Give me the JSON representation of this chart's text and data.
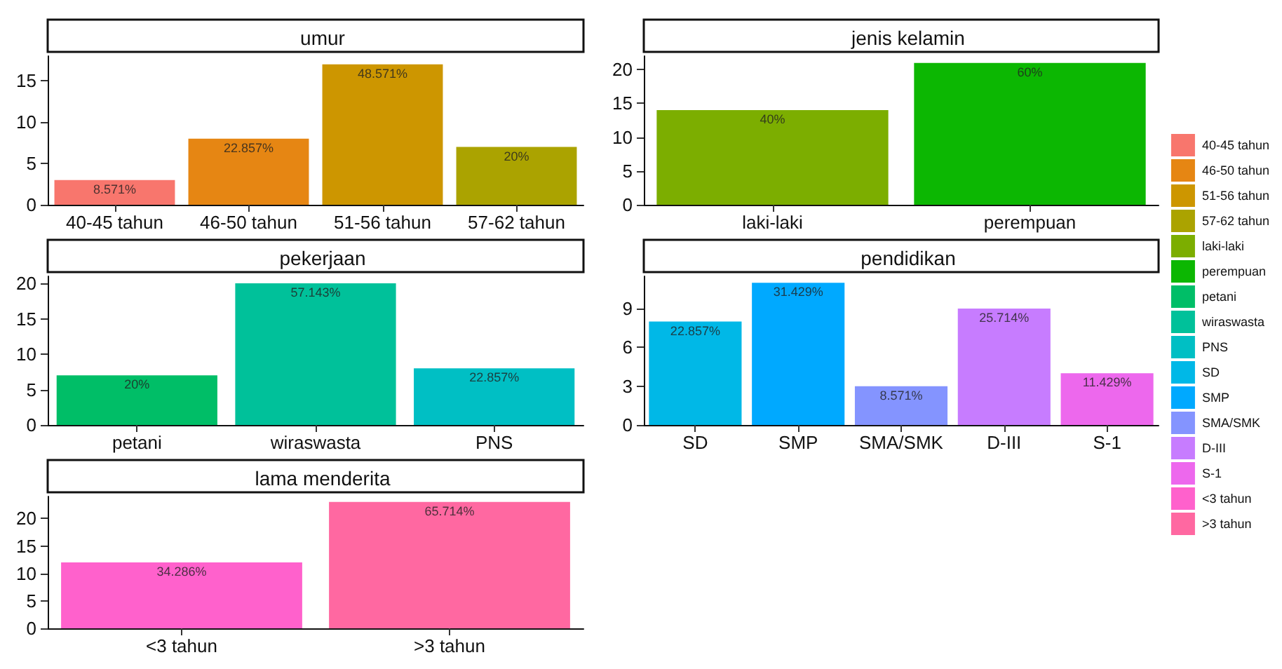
{
  "chart_data": [
    {
      "type": "bar",
      "title": "umur",
      "categories": [
        "40-45 tahun",
        "46-50 tahun",
        "51-56 tahun",
        "57-62 tahun"
      ],
      "stacked": true,
      "series": [
        {
          "name": "40-45 tahun",
          "color": "#F8766D",
          "values": [
            3,
            null,
            null,
            null
          ]
        },
        {
          "name": "46-50 tahun",
          "color": "#E68613",
          "values": [
            null,
            8,
            null,
            null
          ]
        },
        {
          "name": "51-56 tahun",
          "color": "#CD9600",
          "values": [
            null,
            null,
            17,
            null
          ]
        },
        {
          "name": "57-62 tahun",
          "color": "#ABA300",
          "values": [
            null,
            null,
            null,
            7
          ]
        }
      ],
      "annotations": [
        {
          "text": "8.571%",
          "x": "40-45 tahun",
          "y": 3
        },
        {
          "text": "22.857%",
          "x": "46-50 tahun",
          "y": 8
        },
        {
          "text": "48.571%",
          "x": "51-56 tahun",
          "y": 17
        },
        {
          "text": "20%",
          "x": "57-62 tahun",
          "y": 7
        }
      ],
      "ylim": [
        0,
        18
      ],
      "yticks": [
        0,
        5,
        10,
        15
      ],
      "legend": "right"
    },
    {
      "type": "bar",
      "title": "jenis kelamin",
      "categories": [
        "laki-laki",
        "perempuan"
      ],
      "stacked": true,
      "series": [
        {
          "name": "laki-laki",
          "color": "#7CAE00",
          "values": [
            14,
            null
          ]
        },
        {
          "name": "perempuan",
          "color": "#0CB702",
          "values": [
            null,
            21
          ]
        }
      ],
      "annotations": [
        {
          "text": "40%",
          "x": "laki-laki",
          "y": 14
        },
        {
          "text": "60%",
          "x": "perempuan",
          "y": 21
        }
      ],
      "ylim": [
        0,
        22
      ],
      "yticks": [
        0,
        5,
        10,
        15,
        20
      ],
      "legend": "right"
    },
    {
      "type": "bar",
      "title": "pekerjaan",
      "categories": [
        "petani",
        "wiraswasta",
        "PNS"
      ],
      "stacked": true,
      "series": [
        {
          "name": "petani",
          "color": "#00BE67",
          "values": [
            7,
            null,
            null
          ]
        },
        {
          "name": "wiraswasta",
          "color": "#00C19A",
          "values": [
            null,
            20,
            null
          ]
        },
        {
          "name": "PNS",
          "color": "#00BFC4",
          "values": [
            null,
            null,
            8
          ]
        }
      ],
      "annotations": [
        {
          "text": "20%",
          "x": "petani",
          "y": 7
        },
        {
          "text": "57.143%",
          "x": "wiraswasta",
          "y": 20
        },
        {
          "text": "22.857%",
          "x": "PNS",
          "y": 8
        }
      ],
      "ylim": [
        0,
        21
      ],
      "yticks": [
        0,
        5,
        10,
        15,
        20
      ],
      "legend": "right"
    },
    {
      "type": "bar",
      "title": "pendidikan",
      "categories": [
        "SD",
        "SMP",
        "SMA/SMK",
        "D-III",
        "S-1"
      ],
      "stacked": true,
      "series": [
        {
          "name": "SD",
          "color": "#00B8E7",
          "values": [
            8,
            null,
            null,
            null,
            null
          ]
        },
        {
          "name": "SMP",
          "color": "#00A9FF",
          "values": [
            null,
            11,
            null,
            null,
            null
          ]
        },
        {
          "name": "SMA/SMK",
          "color": "#8494FF",
          "values": [
            null,
            null,
            3,
            null,
            null
          ]
        },
        {
          "name": "D-III",
          "color": "#C77CFF",
          "values": [
            null,
            null,
            null,
            9,
            null
          ]
        },
        {
          "name": "S-1",
          "color": "#ED68ED",
          "values": [
            null,
            null,
            null,
            null,
            4
          ]
        }
      ],
      "annotations": [
        {
          "text": "22.857%",
          "x": "SD",
          "y": 8
        },
        {
          "text": "31.429%",
          "x": "SMP",
          "y": 11
        },
        {
          "text": "8.571%",
          "x": "SMA/SMK",
          "y": 3
        },
        {
          "text": "25.714%",
          "x": "D-III",
          "y": 9
        },
        {
          "text": "11.429%",
          "x": "S-1",
          "y": 4
        }
      ],
      "ylim": [
        0,
        11.5
      ],
      "yticks": [
        0,
        3,
        6,
        9
      ],
      "legend": "right"
    },
    {
      "type": "bar",
      "title": "lama menderita",
      "categories": [
        "<3 tahun",
        ">3 tahun"
      ],
      "stacked": true,
      "series": [
        {
          "name": "<3 tahun",
          "color": "#FF61CC",
          "values": [
            12,
            null
          ]
        },
        {
          "name": ">3 tahun",
          "color": "#FF68A1",
          "values": [
            null,
            23
          ]
        }
      ],
      "annotations": [
        {
          "text": "34.286%",
          "x": "<3 tahun",
          "y": 12
        },
        {
          "text": "65.714%",
          "x": ">3 tahun",
          "y": 23
        }
      ],
      "ylim": [
        0,
        24
      ],
      "yticks": [
        0,
        5,
        10,
        15,
        20
      ],
      "legend": "right"
    }
  ]
}
